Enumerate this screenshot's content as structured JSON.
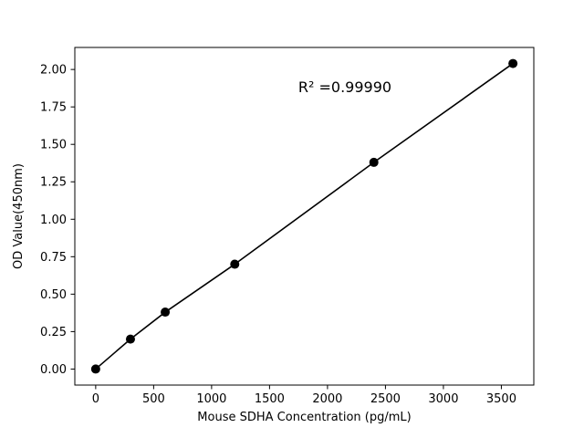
{
  "figure": {
    "background_color": "#ffffff",
    "foreground_color": "#000000"
  },
  "chart_data": {
    "type": "scatter",
    "line": true,
    "x": [
      0,
      300,
      600,
      1200,
      2400,
      3600
    ],
    "y": [
      0.0,
      0.2,
      0.38,
      0.7,
      1.38,
      2.04
    ],
    "title": "",
    "xlabel": "Mouse SDHA Concentration (pg/mL)",
    "ylabel": "OD Value(450nm)",
    "annotation": {
      "text": "R² =0.99990",
      "x": 2150,
      "y": 1.85
    },
    "xlim": [
      -180,
      3780
    ],
    "ylim": [
      -0.107,
      2.147
    ],
    "xticks": [
      0,
      500,
      1000,
      1500,
      2000,
      2500,
      3000,
      3500
    ],
    "yticks": [
      0.0,
      0.25,
      0.5,
      0.75,
      1.0,
      1.25,
      1.5,
      1.75,
      2.0
    ],
    "grid": false,
    "legend_position": "none",
    "line_color": "#000000",
    "marker_color": "#000000",
    "marker_shape": "circle"
  }
}
